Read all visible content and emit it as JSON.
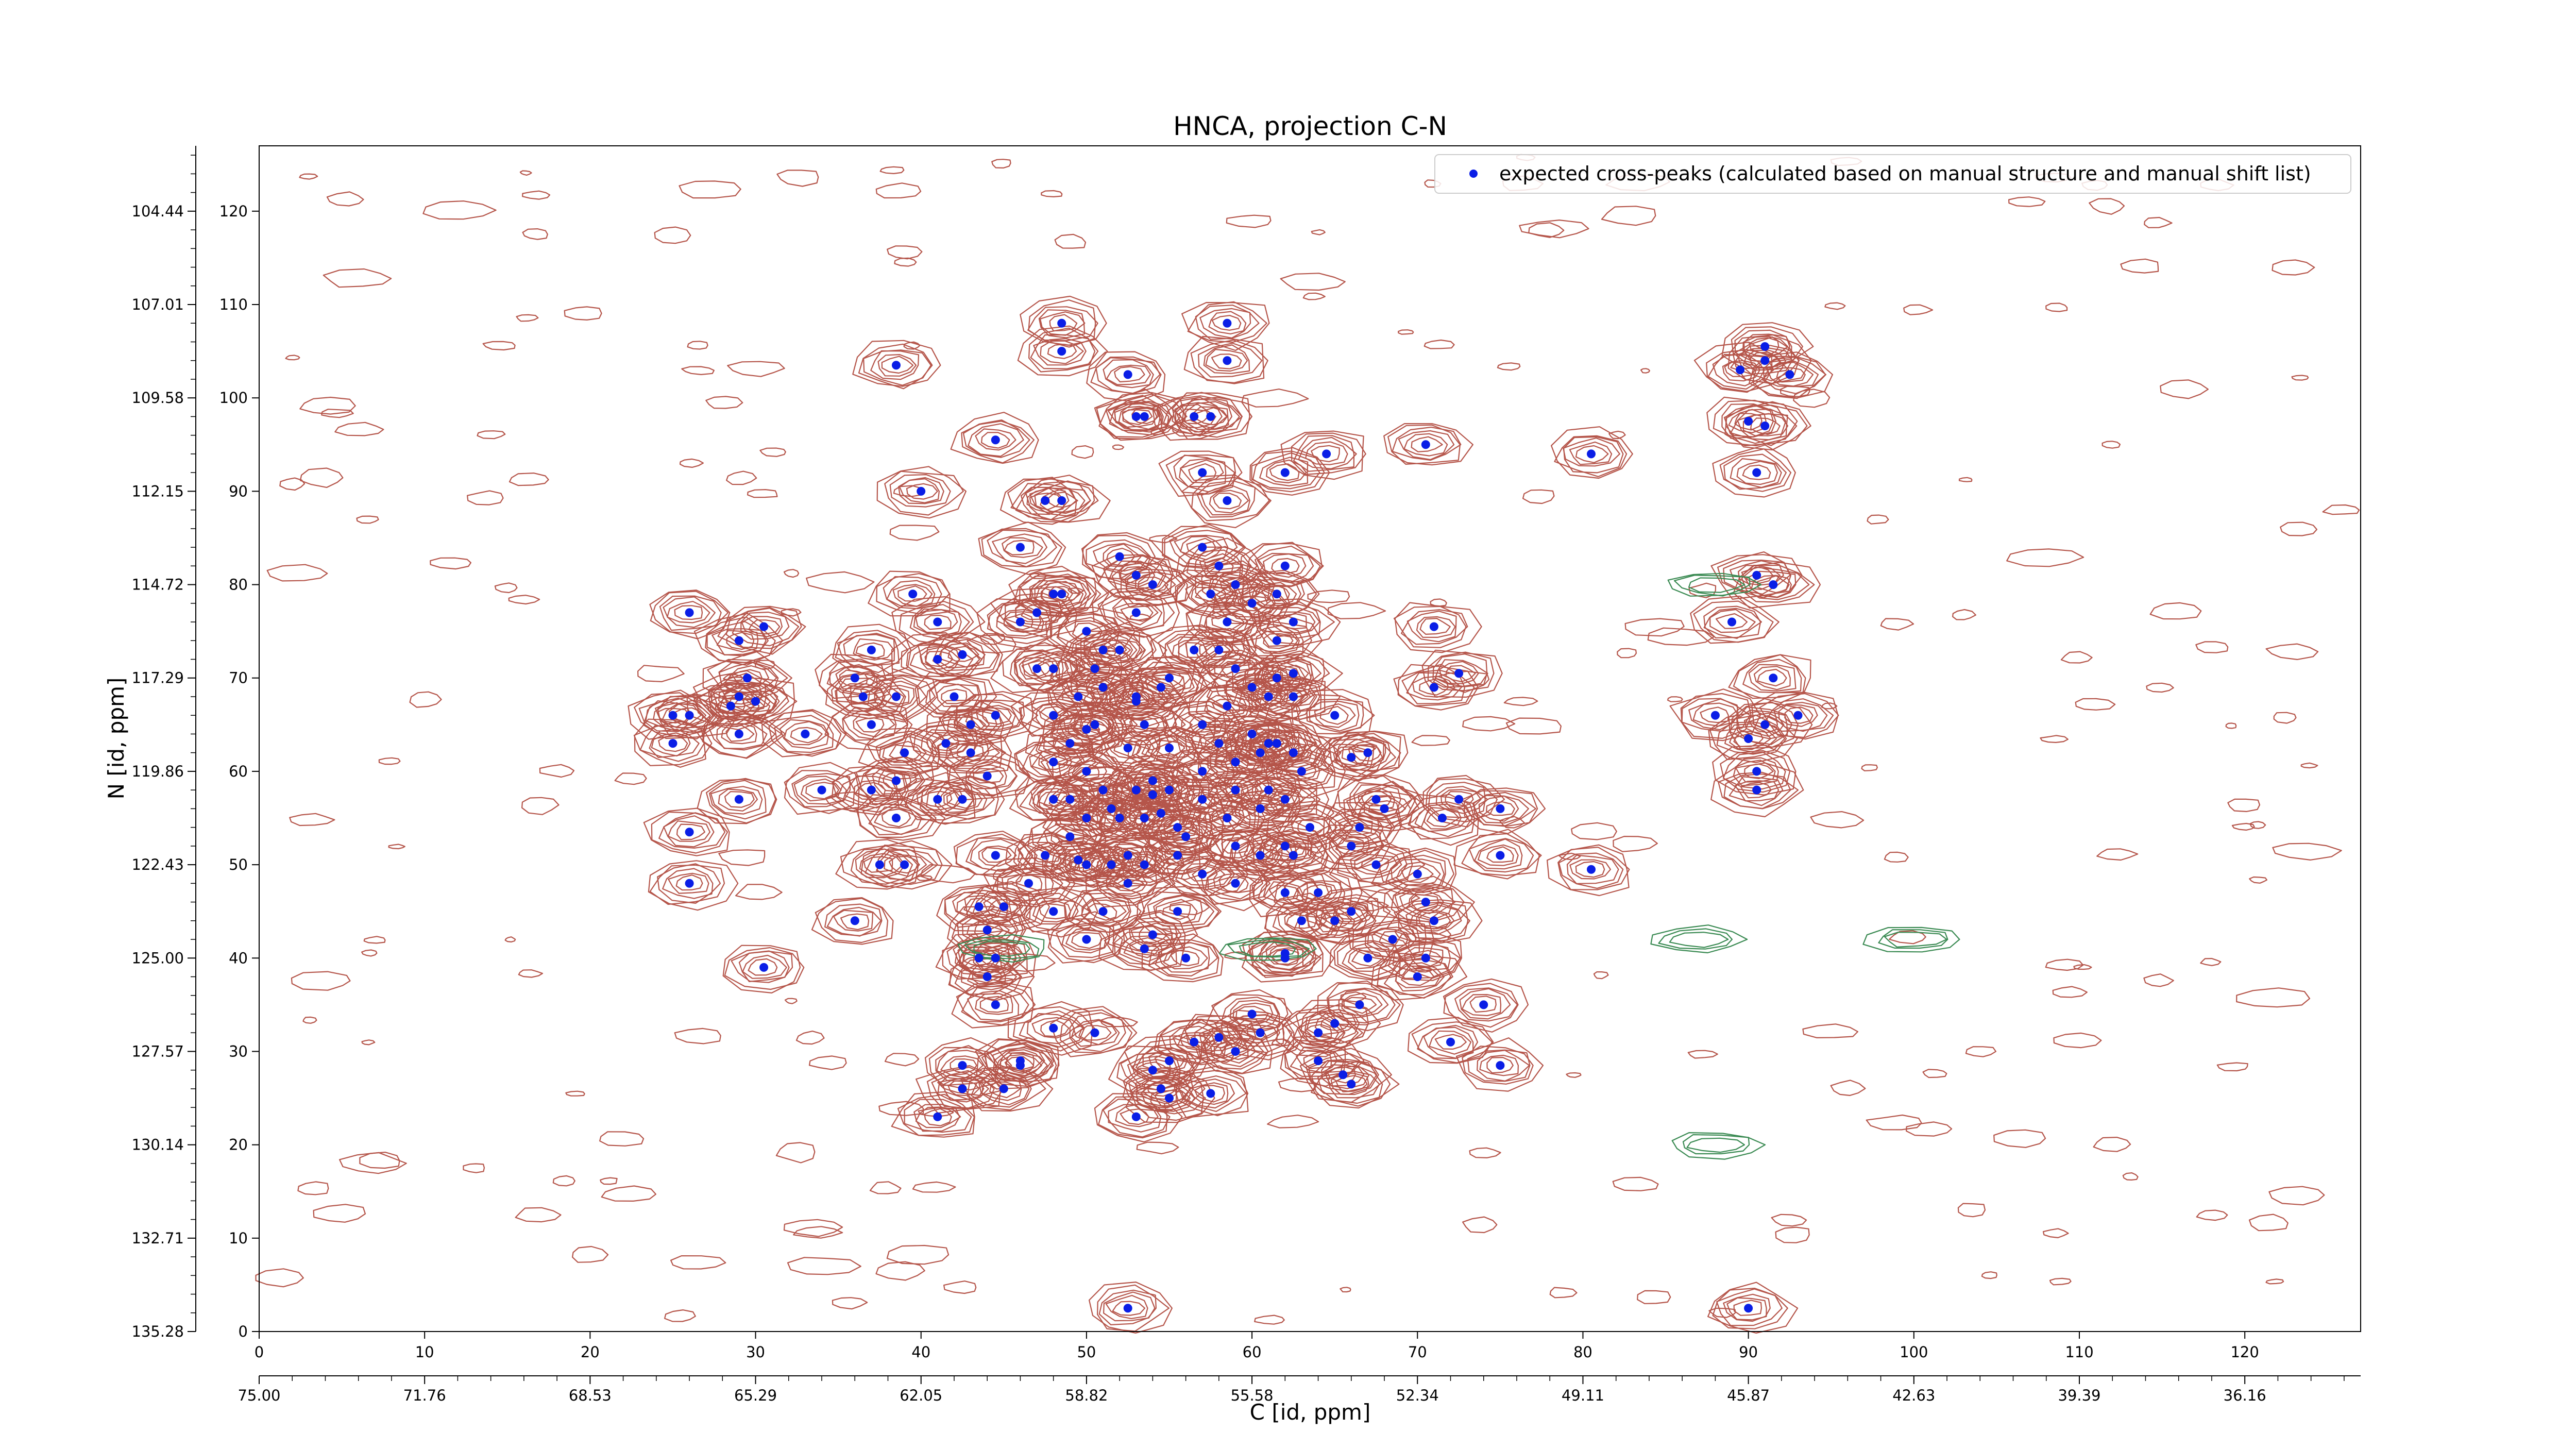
{
  "chart_data": {
    "type": "scatter",
    "title": "HNCA, projection C-N",
    "xlabel": "C [id, ppm]",
    "ylabel": "N [id, ppm]",
    "xlim": [
      0,
      127
    ],
    "ylim": [
      0,
      127
    ],
    "x_ticks_index": [
      "0",
      "10",
      "20",
      "30",
      "40",
      "50",
      "60",
      "70",
      "80",
      "90",
      "100",
      "110",
      "120"
    ],
    "x_ticks_ppm": [
      "75.00",
      "71.76",
      "68.53",
      "65.29",
      "62.05",
      "58.82",
      "55.58",
      "52.34",
      "49.11",
      "45.87",
      "42.63",
      "39.39",
      "36.16"
    ],
    "y_ticks_index": [
      "0",
      "10",
      "20",
      "30",
      "40",
      "50",
      "60",
      "70",
      "80",
      "90",
      "100",
      "110",
      "120"
    ],
    "y_ticks_ppm": [
      "135.28",
      "132.71",
      "130.14",
      "127.57",
      "125.00",
      "122.43",
      "119.86",
      "117.29",
      "114.72",
      "112.15",
      "109.58",
      "107.01",
      "104.44"
    ],
    "legend": {
      "label": "expected cross-peaks (calculated based on manual structure and manual shift list)",
      "placement": "upper-right"
    },
    "colors": {
      "contour_positive": "#b5554a",
      "contour_negative": "#3a8a52",
      "peak": "#0a1ee6"
    },
    "series": [
      {
        "name": "expected cross-peaks (calculated based on manual structure and manual shift list)",
        "points": [
          [
            38.5,
            103.5
          ],
          [
            48.5,
            108
          ],
          [
            48.5,
            105
          ],
          [
            52.5,
            102.5
          ],
          [
            58.5,
            108
          ],
          [
            58.5,
            104
          ],
          [
            53,
            98
          ],
          [
            53.5,
            98
          ],
          [
            56.5,
            98
          ],
          [
            57.5,
            98
          ],
          [
            44.5,
            95.5
          ],
          [
            64.5,
            94
          ],
          [
            70.5,
            95
          ],
          [
            80.5,
            94
          ],
          [
            40,
            90
          ],
          [
            47.5,
            89
          ],
          [
            48.5,
            89
          ],
          [
            57,
            92
          ],
          [
            58.5,
            89
          ],
          [
            62,
            92
          ],
          [
            89.5,
            103
          ],
          [
            91,
            105.5
          ],
          [
            91,
            104
          ],
          [
            92.5,
            102.5
          ],
          [
            90,
            97.5
          ],
          [
            91,
            97
          ],
          [
            90.5,
            92
          ],
          [
            26,
            77
          ],
          [
            29,
            74
          ],
          [
            30.5,
            75.5
          ],
          [
            29.5,
            70
          ],
          [
            29,
            68
          ],
          [
            28.5,
            67
          ],
          [
            30,
            67.5
          ],
          [
            25,
            66
          ],
          [
            26,
            66
          ],
          [
            25,
            63
          ],
          [
            29,
            64
          ],
          [
            26,
            53.5
          ],
          [
            29,
            57
          ],
          [
            26,
            48
          ],
          [
            30.5,
            39
          ],
          [
            33,
            64
          ],
          [
            34,
            58
          ],
          [
            36,
            70
          ],
          [
            36.5,
            68
          ],
          [
            37,
            73
          ],
          [
            38.5,
            68
          ],
          [
            37,
            65
          ],
          [
            39,
            62
          ],
          [
            38.5,
            59
          ],
          [
            37,
            58
          ],
          [
            38.5,
            55
          ],
          [
            37.5,
            50
          ],
          [
            39,
            50
          ],
          [
            36,
            44
          ],
          [
            39.5,
            79
          ],
          [
            41,
            76
          ],
          [
            41,
            72
          ],
          [
            42.5,
            72.5
          ],
          [
            42,
            68
          ],
          [
            41.5,
            63
          ],
          [
            43,
            62
          ],
          [
            41,
            57
          ],
          [
            42.5,
            57
          ],
          [
            44,
            59.5
          ],
          [
            44.5,
            66
          ],
          [
            43,
            65
          ],
          [
            44.5,
            51
          ],
          [
            43.5,
            45.5
          ],
          [
            45,
            45.5
          ],
          [
            44,
            43
          ],
          [
            43.5,
            40
          ],
          [
            44.5,
            40
          ],
          [
            44,
            38
          ],
          [
            44.5,
            35
          ],
          [
            46,
            84
          ],
          [
            48,
            79
          ],
          [
            48.5,
            79
          ],
          [
            47,
            77
          ],
          [
            47,
            71
          ],
          [
            48,
            71
          ],
          [
            46,
            76
          ],
          [
            50,
            75
          ],
          [
            51,
            73
          ],
          [
            50.5,
            71
          ],
          [
            51,
            69
          ],
          [
            49.5,
            68
          ],
          [
            48,
            66
          ],
          [
            50,
            64.5
          ],
          [
            50.5,
            65
          ],
          [
            49,
            63
          ],
          [
            48,
            61
          ],
          [
            50,
            60
          ],
          [
            51,
            58
          ],
          [
            49,
            57
          ],
          [
            48,
            57
          ],
          [
            50,
            55
          ],
          [
            51.5,
            56
          ],
          [
            52,
            55
          ],
          [
            49,
            53
          ],
          [
            47.5,
            51
          ],
          [
            49.5,
            50.5
          ],
          [
            50,
            50
          ],
          [
            51.5,
            50
          ],
          [
            52.5,
            51
          ],
          [
            46.5,
            48
          ],
          [
            48,
            45
          ],
          [
            50,
            42
          ],
          [
            51,
            45
          ],
          [
            52,
            83
          ],
          [
            53,
            81
          ],
          [
            54,
            80
          ],
          [
            53,
            77
          ],
          [
            52,
            73
          ],
          [
            53,
            68
          ],
          [
            53,
            67.5
          ],
          [
            54.5,
            69
          ],
          [
            55,
            70
          ],
          [
            53.5,
            65
          ],
          [
            52.5,
            62.5
          ],
          [
            55,
            62.5
          ],
          [
            54,
            59
          ],
          [
            53,
            58
          ],
          [
            54,
            57.5
          ],
          [
            55,
            58
          ],
          [
            54.5,
            55.5
          ],
          [
            53.5,
            55
          ],
          [
            55.5,
            54
          ],
          [
            56,
            53
          ],
          [
            55.5,
            51
          ],
          [
            53.5,
            50
          ],
          [
            52.5,
            48
          ],
          [
            57,
            49
          ],
          [
            55.5,
            45
          ],
          [
            57,
            84
          ],
          [
            58,
            82
          ],
          [
            59,
            80
          ],
          [
            57.5,
            79
          ],
          [
            58.5,
            76
          ],
          [
            60,
            78
          ],
          [
            56.5,
            73
          ],
          [
            58,
            73
          ],
          [
            59,
            71
          ],
          [
            60,
            69
          ],
          [
            58.5,
            67
          ],
          [
            57,
            65
          ],
          [
            58,
            63
          ],
          [
            60,
            64
          ],
          [
            61,
            63
          ],
          [
            57,
            60
          ],
          [
            59,
            61
          ],
          [
            60.5,
            62
          ],
          [
            57,
            57
          ],
          [
            59,
            58
          ],
          [
            61,
            58
          ],
          [
            58.5,
            55
          ],
          [
            60.5,
            56
          ],
          [
            59,
            52
          ],
          [
            60.5,
            51
          ],
          [
            59,
            48
          ],
          [
            62,
            82
          ],
          [
            61.5,
            79
          ],
          [
            62.5,
            76
          ],
          [
            61.5,
            74
          ],
          [
            61.5,
            70
          ],
          [
            62.5,
            70.5
          ],
          [
            61,
            68
          ],
          [
            62.5,
            68
          ],
          [
            61.5,
            63
          ],
          [
            62.5,
            62
          ],
          [
            63,
            60
          ],
          [
            62,
            57
          ],
          [
            63.5,
            54
          ],
          [
            62,
            52
          ],
          [
            62.5,
            51
          ],
          [
            64,
            47
          ],
          [
            62,
            47
          ],
          [
            63,
            44
          ],
          [
            65,
            44
          ],
          [
            66,
            45
          ],
          [
            65,
            66
          ],
          [
            66,
            61.5
          ],
          [
            67,
            62
          ],
          [
            67.5,
            57
          ],
          [
            68,
            56
          ],
          [
            66.5,
            54
          ],
          [
            66,
            52
          ],
          [
            67.5,
            50
          ],
          [
            68.5,
            42
          ],
          [
            70.5,
            46
          ],
          [
            71,
            44
          ],
          [
            70.5,
            40
          ],
          [
            70,
            38
          ],
          [
            71,
            75.5
          ],
          [
            71,
            69
          ],
          [
            72.5,
            70.5
          ],
          [
            71.5,
            55
          ],
          [
            72.5,
            57
          ],
          [
            75,
            56
          ],
          [
            75,
            51
          ],
          [
            70,
            49
          ],
          [
            74,
            35
          ],
          [
            72,
            31
          ],
          [
            75,
            28.5
          ],
          [
            80.5,
            49.5
          ],
          [
            64,
            32
          ],
          [
            65,
            33
          ],
          [
            66.5,
            35
          ],
          [
            64,
            29
          ],
          [
            65.5,
            27.5
          ],
          [
            66,
            26.5
          ],
          [
            60,
            34
          ],
          [
            60.5,
            32
          ],
          [
            59,
            30
          ],
          [
            58,
            31.5
          ],
          [
            56.5,
            31
          ],
          [
            55,
            29
          ],
          [
            54,
            28
          ],
          [
            54.5,
            26
          ],
          [
            55,
            25
          ],
          [
            53,
            23
          ],
          [
            50.5,
            32
          ],
          [
            48,
            32.5
          ],
          [
            46,
            29
          ],
          [
            42.5,
            28.5
          ],
          [
            42.5,
            26
          ],
          [
            45,
            26
          ],
          [
            46,
            28.5
          ],
          [
            41,
            23
          ],
          [
            57.5,
            25.5
          ],
          [
            52.5,
            2.5
          ],
          [
            54,
            42.5
          ],
          [
            53.5,
            41
          ],
          [
            56,
            40
          ],
          [
            62,
            40.5
          ],
          [
            62,
            40
          ],
          [
            67,
            40
          ],
          [
            90.5,
            81
          ],
          [
            91.5,
            80
          ],
          [
            89,
            76
          ],
          [
            91.5,
            70
          ],
          [
            88,
            66
          ],
          [
            90,
            63.5
          ],
          [
            91,
            65
          ],
          [
            90.5,
            60
          ],
          [
            90.5,
            58
          ],
          [
            93,
            66
          ],
          [
            90,
            2.5
          ]
        ]
      }
    ]
  }
}
